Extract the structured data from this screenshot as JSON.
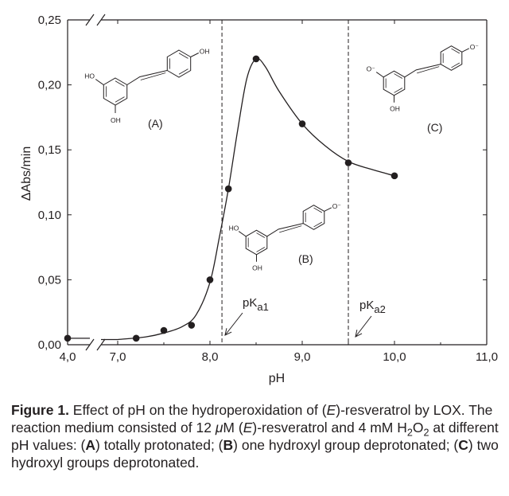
{
  "chart_data": {
    "type": "line",
    "xlabel": "pH",
    "ylabel": "ΔAbs/min",
    "xlim": [
      4.0,
      11.0
    ],
    "ylim": [
      0.0,
      0.25
    ],
    "x_axis_break": [
      4.0,
      7.0
    ],
    "y_axis_break": true,
    "x_ticks": [
      {
        "value": 4.0,
        "label": "4,0"
      },
      {
        "value": 7.0,
        "label": "7,0"
      },
      {
        "value": 8.0,
        "label": "8,0"
      },
      {
        "value": 9.0,
        "label": "9,0"
      },
      {
        "value": 10.0,
        "label": "10,0"
      },
      {
        "value": 11.0,
        "label": "11,0"
      }
    ],
    "y_ticks": [
      {
        "value": 0.0,
        "label": "0,00"
      },
      {
        "value": 0.05,
        "label": "0,05"
      },
      {
        "value": 0.1,
        "label": "0,10"
      },
      {
        "value": 0.15,
        "label": "0,15"
      },
      {
        "value": 0.2,
        "label": "0,20"
      },
      {
        "value": 0.25,
        "label": "0,25"
      }
    ],
    "points": [
      {
        "x": 4.0,
        "y": 0.005
      },
      {
        "x": 7.2,
        "y": 0.005
      },
      {
        "x": 7.5,
        "y": 0.011
      },
      {
        "x": 7.8,
        "y": 0.015
      },
      {
        "x": 8.0,
        "y": 0.05
      },
      {
        "x": 8.2,
        "y": 0.12
      },
      {
        "x": 8.5,
        "y": 0.22
      },
      {
        "x": 9.0,
        "y": 0.17
      },
      {
        "x": 9.5,
        "y": 0.14
      },
      {
        "x": 10.0,
        "y": 0.13
      }
    ],
    "curve_samples": [
      {
        "x": 7.0,
        "y": 0.004
      },
      {
        "x": 7.3,
        "y": 0.006
      },
      {
        "x": 7.5,
        "y": 0.009
      },
      {
        "x": 7.7,
        "y": 0.014
      },
      {
        "x": 7.85,
        "y": 0.023
      },
      {
        "x": 8.0,
        "y": 0.048
      },
      {
        "x": 8.1,
        "y": 0.082
      },
      {
        "x": 8.2,
        "y": 0.12
      },
      {
        "x": 8.3,
        "y": 0.165
      },
      {
        "x": 8.4,
        "y": 0.205
      },
      {
        "x": 8.5,
        "y": 0.22
      },
      {
        "x": 8.6,
        "y": 0.214
      },
      {
        "x": 8.75,
        "y": 0.195
      },
      {
        "x": 9.0,
        "y": 0.17
      },
      {
        "x": 9.25,
        "y": 0.153
      },
      {
        "x": 9.5,
        "y": 0.141
      },
      {
        "x": 9.75,
        "y": 0.135
      },
      {
        "x": 10.0,
        "y": 0.13
      }
    ],
    "reference_lines": [
      {
        "x": 8.13,
        "label_main": "pK",
        "label_sub": "a1"
      },
      {
        "x": 9.5,
        "label_main": "pK",
        "label_sub": "a2"
      }
    ],
    "annotations": [
      {
        "label": "(A)",
        "structure": {
          "ring1_top": "HO",
          "ring1_bottom": "OH",
          "ring2": "OH"
        }
      },
      {
        "label": "(B)",
        "structure": {
          "ring1_top": "HO",
          "ring1_bottom": "OH",
          "ring2": "O⁻"
        }
      },
      {
        "label": "(C)",
        "structure": {
          "ring1_top": "O⁻",
          "ring1_bottom": "OH",
          "ring2": "O⁻"
        }
      }
    ]
  },
  "caption": {
    "figure_label": "Figure 1.",
    "text_1": " Effect of pH on the hydroperoxidation of (",
    "italic_e_1": "E",
    "text_2": ")-resveratrol by LOX. The reaction medium consisted of 12 ",
    "mu": "μ",
    "text_3": "M (",
    "italic_e_2": "E",
    "text_4": ")-resveratrol and 4 mM H",
    "sub_2a": "2",
    "text_5": "O",
    "sub_2b": "2",
    "text_6": " at different pH values: (",
    "bold_a": "A",
    "text_7": ") totally protonated; (",
    "bold_b": "B",
    "text_8": ") one hydroxyl group deprotonated; (",
    "bold_c": "C",
    "text_9": ") two hydroxyl groups deprotonated."
  }
}
